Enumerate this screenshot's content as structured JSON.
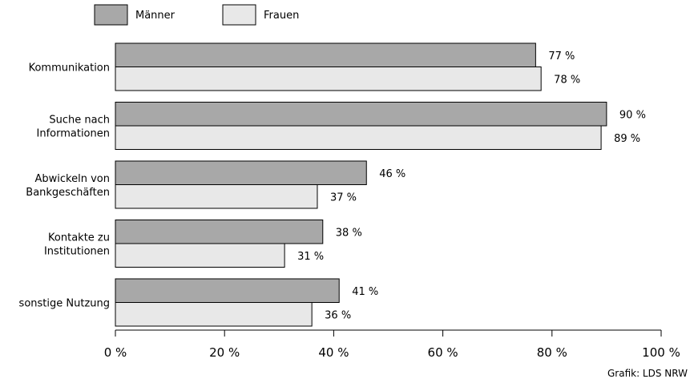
{
  "chart_data": {
    "type": "bar",
    "orientation": "horizontal",
    "categories": [
      [
        "Kommunikation"
      ],
      [
        "Suche nach",
        "Informationen"
      ],
      [
        "Abwickeln von",
        "Bankgeschäften"
      ],
      [
        "Kontakte zu",
        "Institutionen"
      ],
      [
        "sonstige Nutzung"
      ]
    ],
    "series": [
      {
        "name": "Männer",
        "values": [
          77,
          90,
          46,
          38,
          41
        ],
        "color": "#a8a8a8"
      },
      {
        "name": "Frauen",
        "values": [
          78,
          89,
          37,
          31,
          36
        ],
        "color": "#e8e8e8"
      }
    ],
    "value_suffix": " %",
    "xlim": [
      0,
      100
    ],
    "xticks": [
      0,
      20,
      40,
      60,
      80,
      100
    ],
    "xtick_labels": [
      "0 %",
      "20 %",
      "40 %",
      "60 %",
      "80 %",
      "100 %"
    ],
    "legend_position": "top-left",
    "grid": false
  },
  "source": "Grafik: LDS NRW"
}
